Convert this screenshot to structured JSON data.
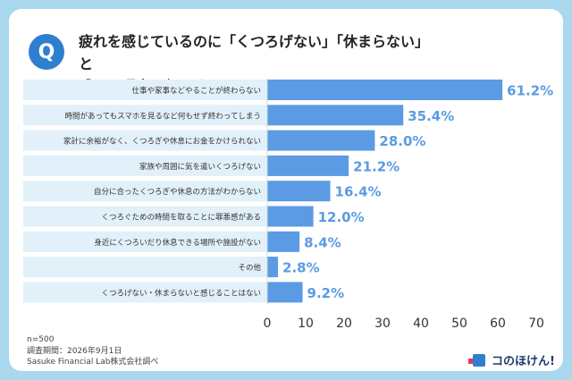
{
  "header": {
    "badge": "Q",
    "title_line1": "疲れを感じているのに「くつろげない」「休まらない」と",
    "title_line2": "感じる理由は何ですか。"
  },
  "footnotes": {
    "n": "n=500",
    "period": "調査期間：2026年9月1日",
    "source": "Sasuke Financial Lab株式会社調べ"
  },
  "brand": {
    "name": "コのほけん!"
  },
  "colors": {
    "bar": "#5b9be3",
    "label": "#5b9be3",
    "band": "#e2f0fa",
    "background": "#a9d8ee",
    "badge": "#2f7fd1"
  },
  "chart_data": {
    "type": "bar",
    "orientation": "horizontal",
    "categories": [
      "仕事や家事などやることが終わらない",
      "時間があってもスマホを見るなど何もせず終わってしまう",
      "家計に余裕がなく、くつろぎや休息にお金をかけられない",
      "家族や周囲に気を遣いくつろげない",
      "自分に合ったくつろぎや休息の方法がわからない",
      "くつろぐための時間を取ることに罪悪感がある",
      "身近にくつろいだり休息できる場所や施設がない",
      "その他",
      "くつろげない・休まらないと感じることはない"
    ],
    "values": [
      61.2,
      35.4,
      28.0,
      21.2,
      16.4,
      12.0,
      8.4,
      2.8,
      9.2
    ],
    "value_labels": [
      "61.2%",
      "35.4%",
      "28.0%",
      "21.2%",
      "16.4%",
      "12.0%",
      "8.4%",
      "2.8%",
      "9.2%"
    ],
    "xlim": [
      0,
      70
    ],
    "xticks": [
      "0",
      "10",
      "20",
      "30",
      "40",
      "50",
      "60",
      "70"
    ],
    "grid": false
  }
}
